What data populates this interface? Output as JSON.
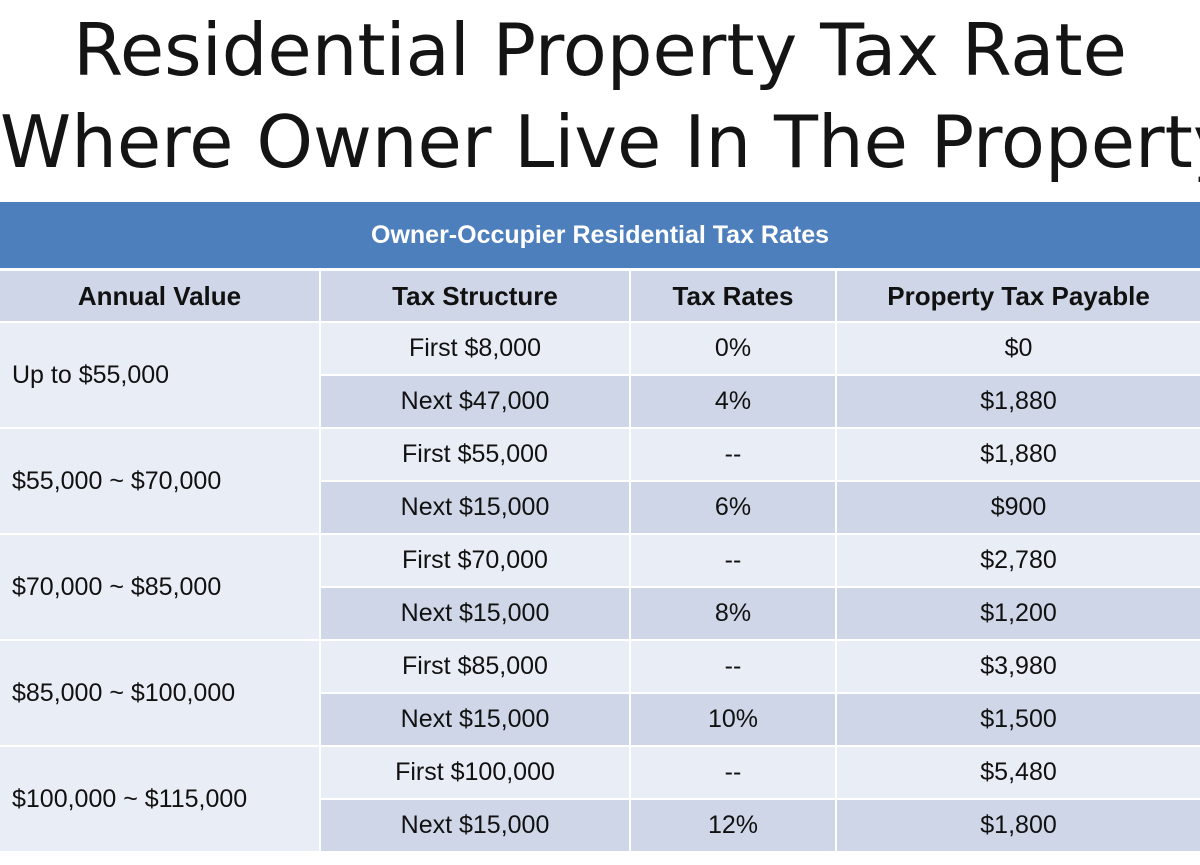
{
  "title": {
    "line1": "Residential Property Tax Rate",
    "line2": "Where Owner Live In The Property"
  },
  "table": {
    "caption": "Owner-Occupier Residential Tax Rates",
    "headers": [
      "Annual Value",
      "Tax Structure",
      "Tax Rates",
      "Property Tax Payable"
    ],
    "bands": [
      {
        "annual_value": "Up to $55,000",
        "rows": [
          {
            "structure": "First $8,000",
            "rate": "0%",
            "payable": "$0"
          },
          {
            "structure": "Next $47,000",
            "rate": "4%",
            "payable": "$1,880"
          }
        ]
      },
      {
        "annual_value": "$55,000 ~ $70,000",
        "rows": [
          {
            "structure": "First $55,000",
            "rate": "--",
            "payable": "$1,880"
          },
          {
            "structure": "Next $15,000",
            "rate": "6%",
            "payable": "$900"
          }
        ]
      },
      {
        "annual_value": "$70,000 ~ $85,000",
        "rows": [
          {
            "structure": "First $70,000",
            "rate": "--",
            "payable": "$2,780"
          },
          {
            "structure": "Next $15,000",
            "rate": "8%",
            "payable": "$1,200"
          }
        ]
      },
      {
        "annual_value": "$85,000 ~ $100,000",
        "rows": [
          {
            "structure": "First $85,000",
            "rate": "--",
            "payable": "$3,980"
          },
          {
            "structure": "Next $15,000",
            "rate": "10%",
            "payable": "$1,500"
          }
        ]
      },
      {
        "annual_value": "$100,000 ~ $115,000",
        "rows": [
          {
            "structure": "First $100,000",
            "rate": "--",
            "payable": "$5,480"
          },
          {
            "structure": "Next $15,000",
            "rate": "12%",
            "payable": "$1,800"
          }
        ]
      }
    ]
  },
  "colors": {
    "caption_bg": "#4e7fbd",
    "header_bg": "#cfd6e7",
    "row_light": "#e9edf5",
    "row_dark": "#cfd6e7"
  }
}
